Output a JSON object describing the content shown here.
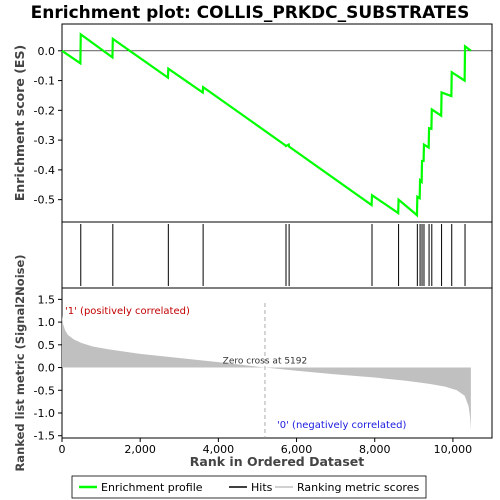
{
  "chart_data": {
    "type": "line",
    "title": "Enrichment plot: COLLIS_PRKDC_SUBSTRATES",
    "es_panel": {
      "ylabel": "Enrichment score (ES)",
      "ylim": [
        -0.575,
        0.09
      ],
      "yticks": [
        0.0,
        -0.1,
        -0.2,
        -0.3,
        -0.4,
        -0.5
      ],
      "ytick_labels": [
        "0.0",
        "-0.1",
        "-0.2",
        "-0.3",
        "-0.4",
        "-0.5"
      ],
      "series_color": "#00ff00",
      "profile": [
        [
          0,
          0.0
        ],
        [
          470,
          -0.042
        ],
        [
          480,
          0.055
        ],
        [
          1290,
          -0.022
        ],
        [
          1300,
          0.04
        ],
        [
          2710,
          -0.09
        ],
        [
          2720,
          -0.06
        ],
        [
          3600,
          -0.14
        ],
        [
          3610,
          -0.122
        ],
        [
          5720,
          -0.318
        ],
        [
          5730,
          -0.32
        ],
        [
          5800,
          -0.315
        ],
        [
          5810,
          -0.322
        ],
        [
          7920,
          -0.518
        ],
        [
          7930,
          -0.485
        ],
        [
          8600,
          -0.545
        ],
        [
          8610,
          -0.5
        ],
        [
          9080,
          -0.552
        ],
        [
          9090,
          -0.49
        ],
        [
          9150,
          -0.495
        ],
        [
          9160,
          -0.435
        ],
        [
          9200,
          -0.44
        ],
        [
          9210,
          -0.37
        ],
        [
          9250,
          -0.37
        ],
        [
          9260,
          -0.315
        ],
        [
          9380,
          -0.325
        ],
        [
          9390,
          -0.26
        ],
        [
          9450,
          -0.262
        ],
        [
          9460,
          -0.197
        ],
        [
          9700,
          -0.218
        ],
        [
          9710,
          -0.14
        ],
        [
          9960,
          -0.152
        ],
        [
          9970,
          -0.072
        ],
        [
          10300,
          -0.1
        ],
        [
          10310,
          0.015
        ],
        [
          10460,
          0.0
        ]
      ]
    },
    "hits_panel": {
      "hits": [
        480,
        1300,
        2720,
        3610,
        5730,
        5810,
        7930,
        8610,
        9090,
        9160,
        9210,
        9260,
        9390,
        9460,
        9710,
        9970,
        10310
      ]
    },
    "heatmap_bar": {
      "colors": [
        "#e8002a",
        "#f33040",
        "#f85a68",
        "#fb8a94",
        "#ffc0e8",
        "#dcdcf8",
        "#bcbcfa",
        "#8888f4",
        "#5a5aee",
        "#2f2fe0",
        "#1a08c8"
      ],
      "boundaries": [
        0,
        350,
        1950,
        2900,
        3950,
        5200,
        5700,
        6350,
        7350,
        8300,
        9800,
        10460
      ]
    },
    "metric_panel": {
      "ylabel": "Ranked list metric (Signal2Noise)",
      "ylim": [
        -1.55,
        1.75
      ],
      "yticks": [
        1.5,
        1.0,
        0.5,
        0.0,
        -0.5,
        -1.0,
        -1.5
      ],
      "ytick_labels": [
        "1.5",
        "1.0",
        "0.5",
        "0.0",
        "-0.5",
        "-1.0",
        "-1.5"
      ],
      "curve": [
        [
          0,
          1.15
        ],
        [
          30,
          0.95
        ],
        [
          80,
          0.82
        ],
        [
          150,
          0.72
        ],
        [
          300,
          0.62
        ],
        [
          500,
          0.54
        ],
        [
          800,
          0.46
        ],
        [
          1200,
          0.4
        ],
        [
          2000,
          0.3
        ],
        [
          3000,
          0.21
        ],
        [
          4000,
          0.12
        ],
        [
          5192,
          0.0
        ],
        [
          6000,
          -0.07
        ],
        [
          7000,
          -0.15
        ],
        [
          8000,
          -0.22
        ],
        [
          8800,
          -0.29
        ],
        [
          9400,
          -0.36
        ],
        [
          9800,
          -0.42
        ],
        [
          10100,
          -0.5
        ],
        [
          10300,
          -0.62
        ],
        [
          10400,
          -0.85
        ],
        [
          10440,
          -1.1
        ],
        [
          10460,
          -1.38
        ]
      ],
      "fill_color": "#c0c0c0",
      "zero_cross_label": "Zero cross at 5192",
      "zero_cross": 5192,
      "positive_label": "'1' (positively correlated)",
      "negative_label": "'0' (negatively correlated)"
    },
    "x_axis": {
      "xlabel": "Rank in Ordered Dataset",
      "xlim": [
        0,
        11000
      ],
      "xticks": [
        0,
        2000,
        4000,
        6000,
        8000,
        10000
      ],
      "xtick_labels": [
        "0",
        "2,000",
        "4,000",
        "6,000",
        "8,000",
        "10,000"
      ]
    },
    "legend": {
      "placement": "bottom",
      "entries": [
        {
          "label": "Enrichment profile",
          "color": "#00ff00"
        },
        {
          "label": "Hits",
          "color": "#000000"
        },
        {
          "label": "Ranking metric scores",
          "color": "#c0c0c0"
        }
      ]
    }
  }
}
